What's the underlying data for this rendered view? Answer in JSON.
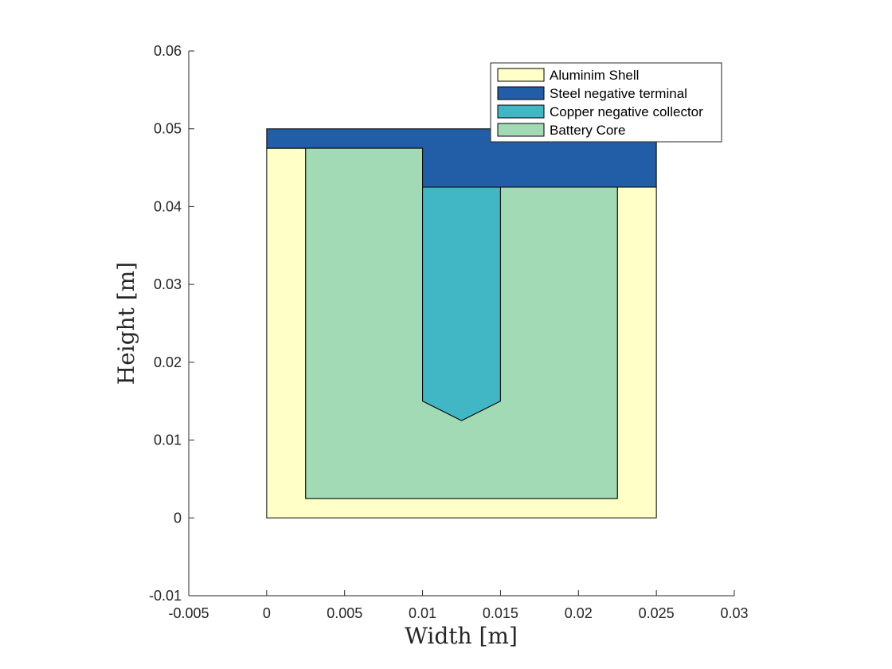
{
  "chart_data": {
    "type": "area",
    "xlabel": "Width [m]",
    "ylabel": "Height [m]",
    "xlim": [
      -0.005,
      0.03
    ],
    "ylim": [
      -0.01,
      0.06
    ],
    "xticks": [
      -0.005,
      0,
      0.005,
      0.01,
      0.015,
      0.02,
      0.025,
      0.03
    ],
    "xtick_labels": [
      "-0.005",
      "0",
      "0.005",
      "0.01",
      "0.015",
      "0.02",
      "0.025",
      "0.03"
    ],
    "yticks": [
      -0.01,
      0,
      0.01,
      0.02,
      0.03,
      0.04,
      0.05,
      0.06
    ],
    "ytick_labels": [
      "-0.01",
      "0",
      "0.01",
      "0.02",
      "0.03",
      "0.04",
      "0.05",
      "0.06"
    ],
    "grid": false,
    "legend_position": "top-right",
    "series": [
      {
        "name": "Aluminim Shell",
        "color": "#FFFFC8",
        "polygon": [
          [
            0,
            0
          ],
          [
            0.025,
            0
          ],
          [
            0.025,
            0.0425
          ],
          [
            0.0225,
            0.0425
          ],
          [
            0.0225,
            0.0025
          ],
          [
            0.0025,
            0.0025
          ],
          [
            0.0025,
            0.0475
          ],
          [
            0,
            0.0475
          ]
        ]
      },
      {
        "name": "Steel negative terminal",
        "color": "#225EA8",
        "polygon": [
          [
            0,
            0.0475
          ],
          [
            0,
            0.05
          ],
          [
            0.025,
            0.05
          ],
          [
            0.025,
            0.0425
          ],
          [
            0.01,
            0.0425
          ],
          [
            0.01,
            0.0475
          ]
        ]
      },
      {
        "name": "Copper negative collector",
        "color": "#41B6C4",
        "polygon": [
          [
            0.01,
            0.0425
          ],
          [
            0.015,
            0.0425
          ],
          [
            0.015,
            0.015
          ],
          [
            0.0125,
            0.0125
          ],
          [
            0.01,
            0.015
          ]
        ]
      },
      {
        "name": "Battery Core",
        "color": "#A1DAB4",
        "polygon": [
          [
            0.0025,
            0.0025
          ],
          [
            0.0225,
            0.0025
          ],
          [
            0.0225,
            0.0425
          ],
          [
            0.015,
            0.0425
          ],
          [
            0.015,
            0.015
          ],
          [
            0.0125,
            0.0125
          ],
          [
            0.01,
            0.015
          ],
          [
            0.01,
            0.0475
          ],
          [
            0.0025,
            0.0475
          ]
        ]
      }
    ]
  }
}
